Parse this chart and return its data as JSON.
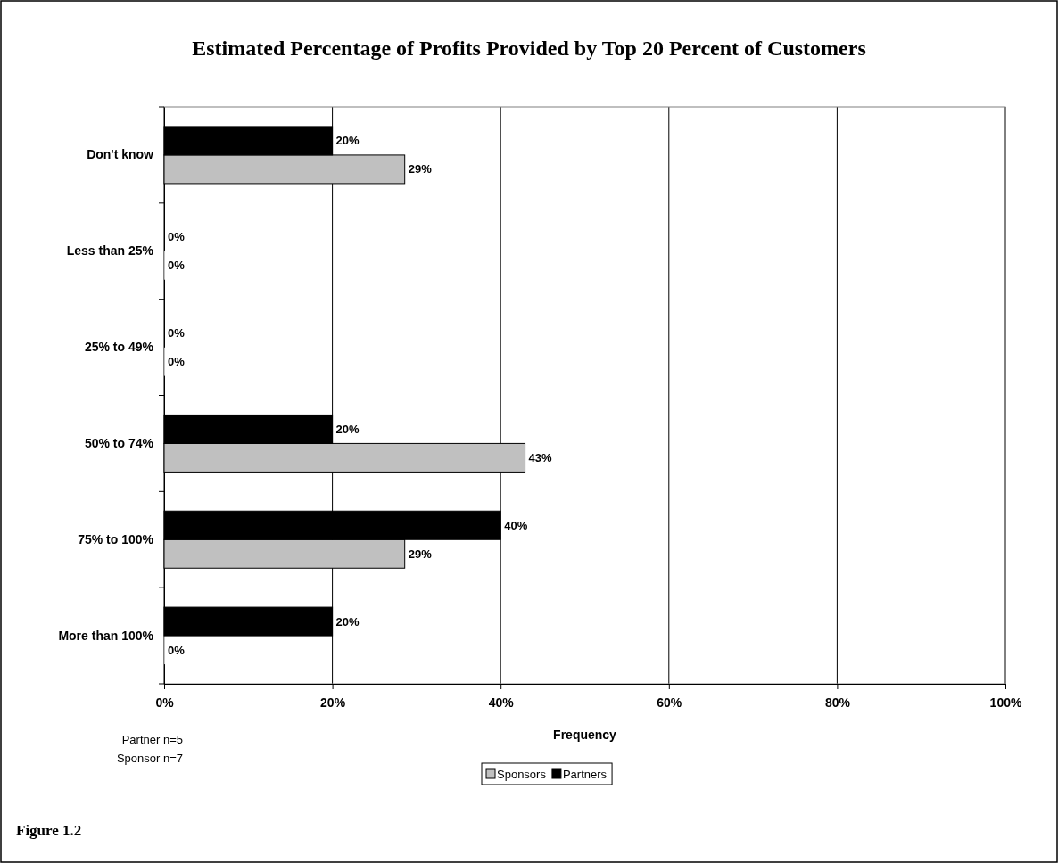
{
  "chart_data": {
    "type": "bar",
    "orientation": "horizontal",
    "title": "Estimated Percentage of Profits Provided by Top 20 Percent of Customers",
    "xlabel": "Frequency",
    "categories": [
      "Don't know",
      "Less than 25%",
      "25% to 49%",
      "50% to 74%",
      "75% to 100%",
      "More than 100%"
    ],
    "series": [
      {
        "name": "Sponsors",
        "color": "#c0c0c0",
        "values": [
          28.6,
          0,
          0,
          42.9,
          28.6,
          0
        ],
        "value_labels": [
          "29%",
          "0%",
          "0%",
          "43%",
          "29%",
          "0%"
        ]
      },
      {
        "name": "Partners",
        "color": "#000000",
        "values": [
          20,
          0,
          0,
          20,
          40,
          20
        ],
        "value_labels": [
          "20%",
          "0%",
          "0%",
          "20%",
          "40%",
          "20%"
        ]
      }
    ],
    "xlim": [
      0,
      100
    ],
    "xticks": [
      {
        "value": 0,
        "label": "0%"
      },
      {
        "value": 20,
        "label": "20%"
      },
      {
        "value": 40,
        "label": "40%"
      },
      {
        "value": 60,
        "label": "60%"
      },
      {
        "value": 80,
        "label": "80%"
      },
      {
        "value": 100,
        "label": "100%"
      }
    ],
    "grid": "x",
    "legend": "bottom",
    "annotations": [
      "Partner n=5",
      "Sponsor n=7",
      "Figure 1.2"
    ]
  }
}
